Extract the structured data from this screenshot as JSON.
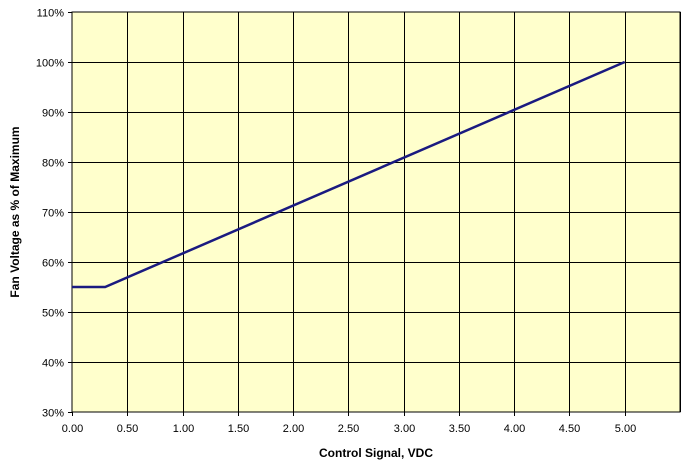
{
  "chart_data": {
    "type": "line",
    "title": "",
    "xlabel": "Control Signal, VDC",
    "ylabel": "Fan Voltage as % of Maximum",
    "xlim": [
      0,
      5.5
    ],
    "ylim": [
      30,
      110
    ],
    "x_ticks": [
      0,
      0.5,
      1,
      1.5,
      2,
      2.5,
      3,
      3.5,
      4,
      4.5,
      5
    ],
    "x_tick_labels": [
      "0.00",
      "0.50",
      "1.00",
      "1.50",
      "2.00",
      "2.50",
      "3.00",
      "3.50",
      "4.00",
      "4.50",
      "5.00"
    ],
    "y_ticks": [
      30,
      40,
      50,
      60,
      70,
      80,
      90,
      100,
      110
    ],
    "y_tick_labels": [
      "30%",
      "40%",
      "50%",
      "60%",
      "70%",
      "80%",
      "90%",
      "100%",
      "110%"
    ],
    "grid": true,
    "legend": "none",
    "series": [
      {
        "color": "#1a1a80",
        "x": [
          0,
          0.3,
          5
        ],
        "y": [
          55,
          55,
          100
        ]
      }
    ]
  },
  "colors": {
    "plot_background": "#ffffcc",
    "grid": "#000000",
    "series_line": "#1a1a80"
  }
}
